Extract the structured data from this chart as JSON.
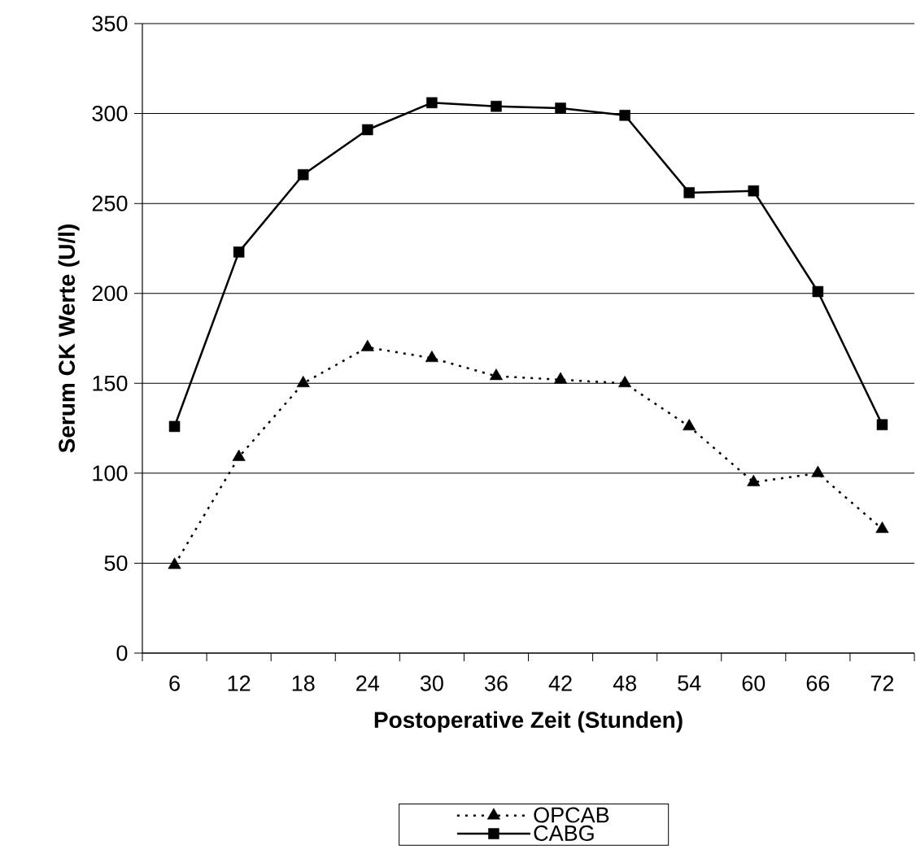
{
  "chart_data": {
    "type": "line",
    "xlabel": "Postoperative Zeit (Stunden)",
    "ylabel": "Serum CK Werte (U/l)",
    "categories": [
      "6",
      "12",
      "18",
      "24",
      "30",
      "36",
      "42",
      "48",
      "54",
      "60",
      "66",
      "72"
    ],
    "series": [
      {
        "name": "OPCAB",
        "color": "#000000",
        "marker": "triangle",
        "line_style": "dotted",
        "values": [
          49,
          109,
          150,
          170,
          164,
          154,
          152,
          150,
          126,
          95,
          100,
          69
        ]
      },
      {
        "name": "CABG",
        "color": "#000000",
        "marker": "square",
        "line_style": "solid",
        "values": [
          126,
          223,
          266,
          291,
          306,
          304,
          303,
          299,
          256,
          257,
          201,
          127
        ]
      }
    ],
    "ylim": [
      0,
      350
    ],
    "yticks": [
      0,
      50,
      100,
      150,
      200,
      250,
      300,
      350
    ],
    "grid": "y",
    "legend": "bottom"
  }
}
